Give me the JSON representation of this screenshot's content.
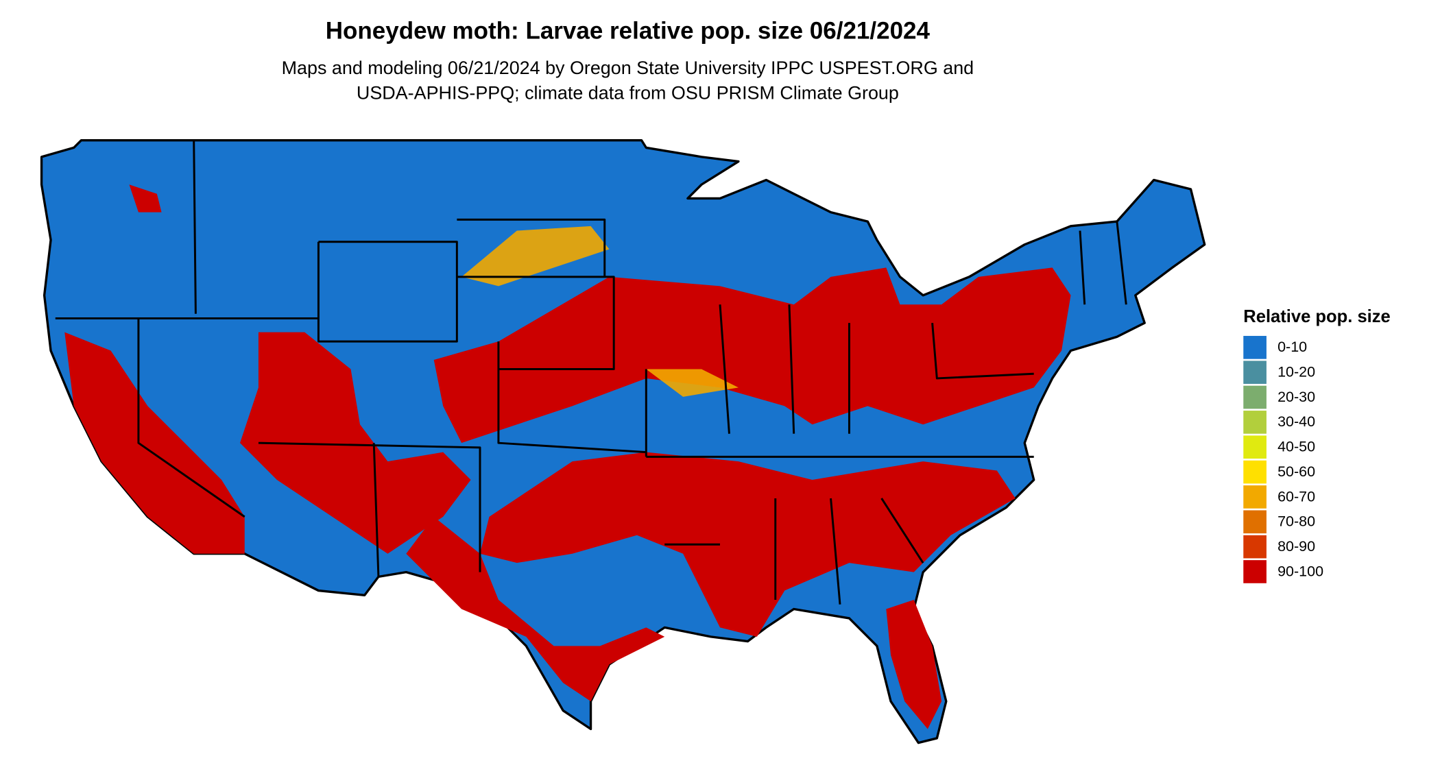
{
  "header": {
    "title": "Honeydew moth: Larvae relative pop. size 06/21/2024",
    "subtitle": [
      "Maps and modeling 06/21/2024 by Oregon State University IPPC USPEST.ORG and",
      "USDA-APHIS-PPQ; climate data from OSU PRISM Climate Group"
    ]
  },
  "legend": {
    "title": "Relative pop. size",
    "items": [
      {
        "label": "0-10",
        "color": "#1874cd"
      },
      {
        "label": "10-20",
        "color": "#4a8fa0"
      },
      {
        "label": "20-30",
        "color": "#7cad6e"
      },
      {
        "label": "30-40",
        "color": "#b2cf3c"
      },
      {
        "label": "40-50",
        "color": "#e0ea10"
      },
      {
        "label": "50-60",
        "color": "#ffe000"
      },
      {
        "label": "60-70",
        "color": "#f2a900"
      },
      {
        "label": "70-80",
        "color": "#e07000"
      },
      {
        "label": "80-90",
        "color": "#d83800"
      },
      {
        "label": "90-100",
        "color": "#cc0000"
      }
    ]
  }
}
